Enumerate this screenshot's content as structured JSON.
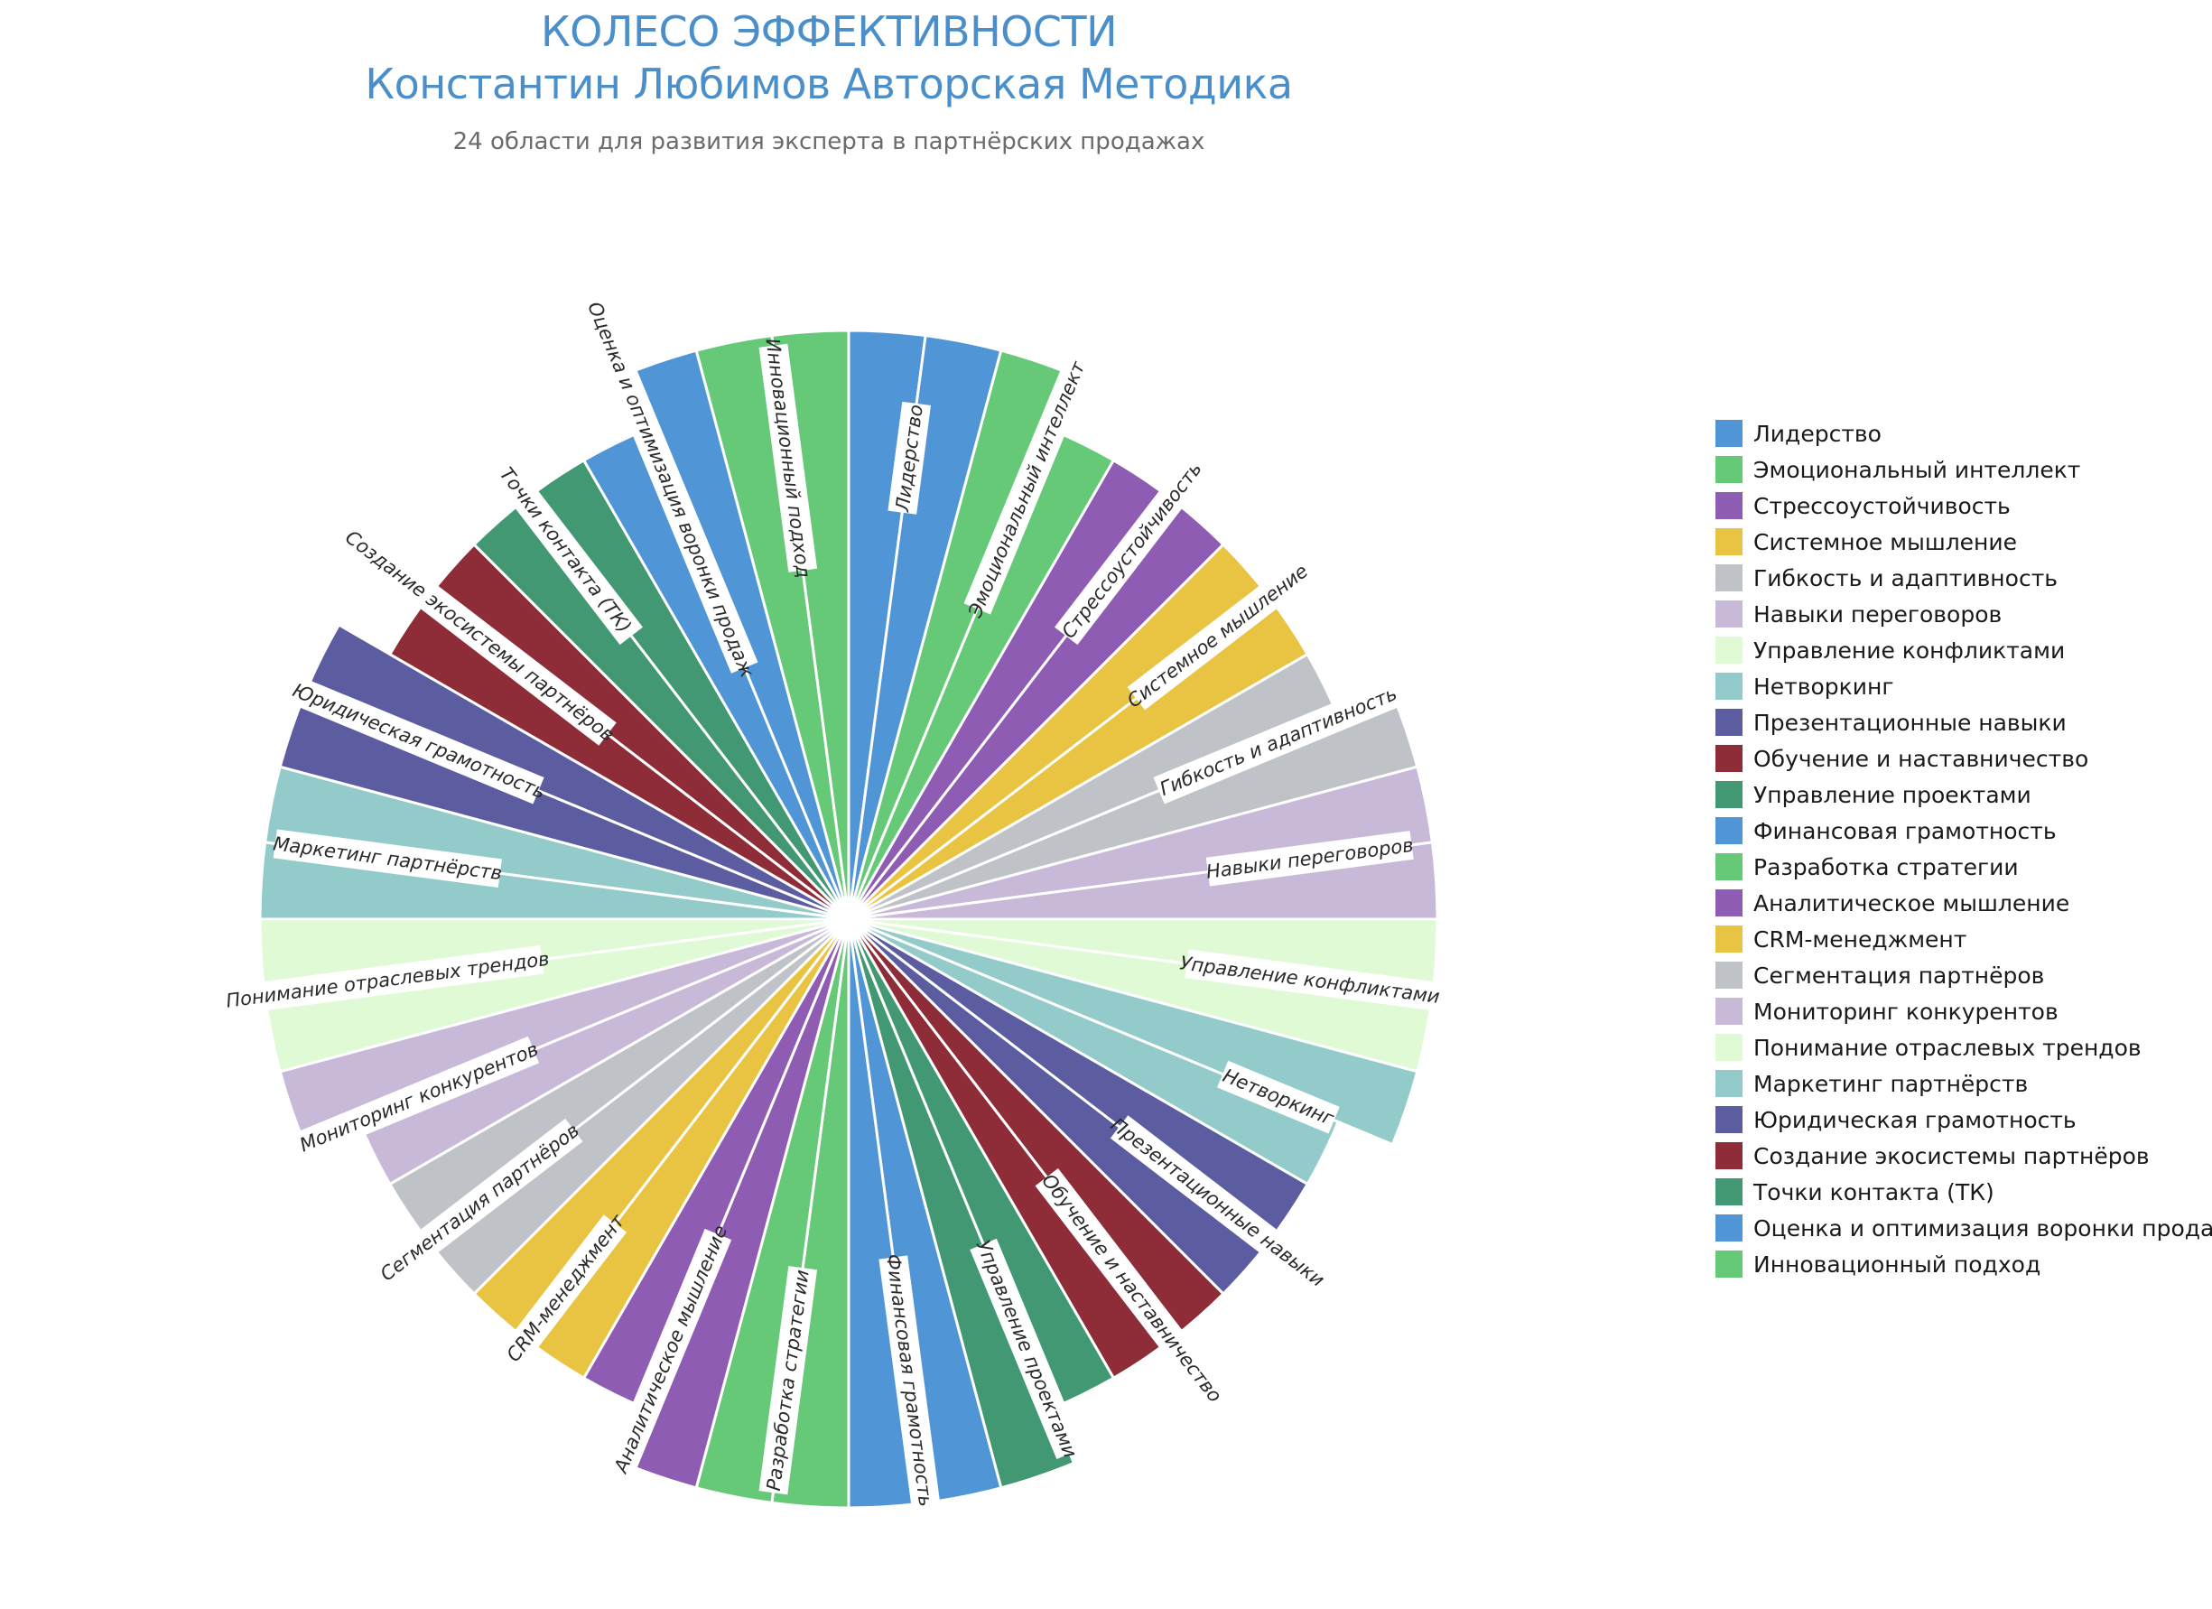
{
  "title_line1": "КОЛЕСО ЭФФЕКТИВНОСТИ",
  "title_line2": "Константин Любимов Авторская Методика",
  "subtitle": "24 области для развития эксперта в партнёрских продажах",
  "chart_data": {
    "type": "pie",
    "title": "КОЛЕСО ЭФФЕКТИВНОСТИ Константин Любимов Авторская Методика",
    "subtitle": "24 области для развития эксперта в партнёрских продажах",
    "legend_position": "right",
    "max_value": 10,
    "categories": [
      {
        "name": "Лидерство",
        "color": "#5095d6",
        "values": [
          10,
          10
        ]
      },
      {
        "name": "Эмоциональный интеллект",
        "color": "#66c977",
        "values": [
          10,
          9
        ]
      },
      {
        "name": "Стрессоустойчивость",
        "color": "#8f5cb3",
        "values": [
          9,
          9
        ]
      },
      {
        "name": "Системное мышление",
        "color": "#e9c342",
        "values": [
          9,
          9
        ]
      },
      {
        "name": "Гибкость и адаптивность",
        "color": "#bfc2c6",
        "values": [
          9,
          10
        ]
      },
      {
        "name": "Навыки переговоров",
        "color": "#c8b9d8",
        "values": [
          10,
          10
        ]
      },
      {
        "name": "Управление конфликтами",
        "color": "#e1fad6",
        "values": [
          10,
          10
        ]
      },
      {
        "name": "Нетворкинг",
        "color": "#93cbcb",
        "values": [
          10,
          9
        ]
      },
      {
        "name": "Презентационные навыки",
        "color": "#5c5ca0",
        "values": [
          9,
          9
        ]
      },
      {
        "name": "Обучение и наставничество",
        "color": "#8e2c38",
        "values": [
          9,
          9
        ]
      },
      {
        "name": "Управление проектами",
        "color": "#419873",
        "values": [
          9,
          10
        ]
      },
      {
        "name": "Финансовая грамотность",
        "color": "#5095d6",
        "values": [
          10,
          10
        ]
      },
      {
        "name": "Разработка стратегии",
        "color": "#66c977",
        "values": [
          10,
          10
        ]
      },
      {
        "name": "Аналитическое мышление",
        "color": "#8f5cb3",
        "values": [
          10,
          9
        ]
      },
      {
        "name": "CRM-менеджмент",
        "color": "#e9c342",
        "values": [
          9,
          9
        ]
      },
      {
        "name": "Сегментация партнёров",
        "color": "#bfc2c6",
        "values": [
          9,
          9
        ]
      },
      {
        "name": "Мониторинг конкурентов",
        "color": "#c8b9d8",
        "values": [
          9,
          10
        ]
      },
      {
        "name": "Понимание отраслевых трендов",
        "color": "#e1fad6",
        "values": [
          10,
          10
        ]
      },
      {
        "name": "Маркетинг партнёрств",
        "color": "#93cbcb",
        "values": [
          10,
          10
        ]
      },
      {
        "name": "Юридическая грамотность",
        "color": "#5c5ca0",
        "values": [
          10,
          10
        ]
      },
      {
        "name": "Создание экосистемы партнёров",
        "color": "#8e2c38",
        "values": [
          9,
          9
        ]
      },
      {
        "name": "Точки контакта (ТК)",
        "color": "#419873",
        "values": [
          9,
          9
        ]
      },
      {
        "name": "Оценка и оптимизация воронки продаж",
        "color": "#5095d6",
        "values": [
          9,
          10
        ]
      },
      {
        "name": "Инновационный подход",
        "color": "#66c977",
        "values": [
          10,
          10
        ]
      }
    ]
  }
}
